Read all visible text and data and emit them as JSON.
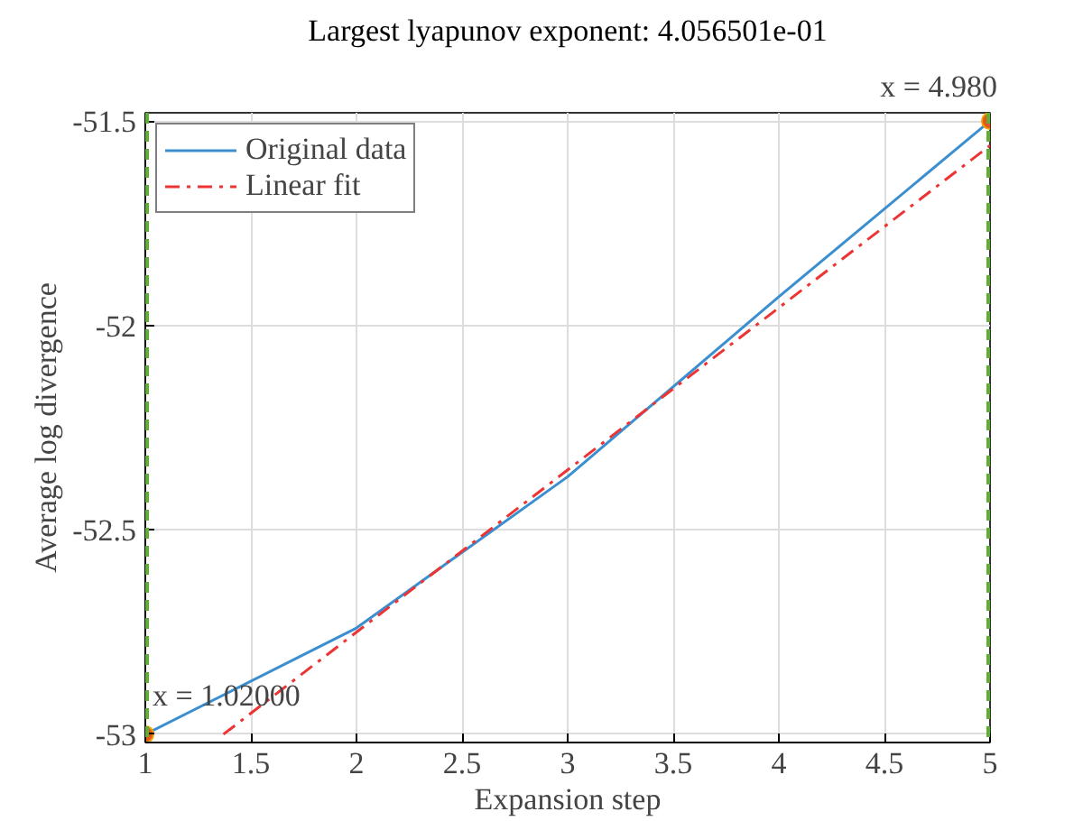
{
  "chart_data": {
    "type": "line",
    "title": "Largest lyapunov exponent: 4.056501e-01",
    "xlabel": "Expansion step",
    "ylabel": "Average log divergence",
    "xlim": [
      1,
      5
    ],
    "ylim": [
      -53.02,
      -51.48
    ],
    "xticks": [
      1,
      1.5,
      2,
      2.5,
      3,
      3.5,
      4,
      4.5,
      5
    ],
    "yticks": [
      -53,
      -52.5,
      -52,
      -51.5
    ],
    "grid": true,
    "legend": "top left",
    "series": [
      {
        "name": "Original data",
        "color": "#3b8fd0",
        "x": [
          1,
          2,
          3,
          4,
          5
        ],
        "values": [
          -53,
          -52.74,
          -52.37,
          -51.93,
          -51.5
        ],
        "line_style": "solid"
      },
      {
        "name": "Linear fit",
        "color": "#ee3333",
        "x": [
          1.37,
          5
        ],
        "values": [
          -53,
          -51.56
        ],
        "line_style": "dashdot"
      },
      {
        "type": "scatter",
        "color": "#e8541c",
        "marker": "circle",
        "x": [
          1,
          5
        ],
        "values": [
          -53,
          -51.5
        ]
      }
    ],
    "ref_lines": [
      {
        "axis": "x",
        "value": 1,
        "color": "#5fb030",
        "line_style": "dashed"
      },
      {
        "axis": "x",
        "value": 5,
        "color": "#5fb030",
        "line_style": "dashed"
      }
    ],
    "annotations": [
      {
        "text": "x = 1.02000",
        "x": 1,
        "y": -53
      },
      "x = 4.980"
    ]
  }
}
